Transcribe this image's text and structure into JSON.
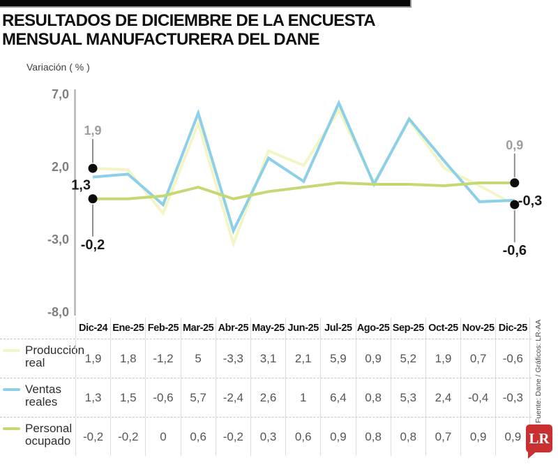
{
  "title": {
    "line1": "RESULTADOS DE DICIEMBRE DE LA ENCUESTA",
    "line2": "MENSUAL MANUFACTURERA DEL DANE"
  },
  "chart_data": {
    "type": "line",
    "ylabel": "Variación ( % )",
    "ylim": [
      -8,
      7
    ],
    "grid": false,
    "legend_position": "table-left",
    "y_ticks": [
      {
        "value": 7,
        "label": "7,0"
      },
      {
        "value": 2,
        "label": "2,0"
      },
      {
        "value": -3,
        "label": "-3,0"
      },
      {
        "value": -8,
        "label": "-8,0"
      }
    ],
    "categories": [
      "Dic-24",
      "Ene-25",
      "Feb-25",
      "Mar-25",
      "Abr-25",
      "May-25",
      "Jun-25",
      "Jul-25",
      "Ago-25",
      "Sep-25",
      "Oct-25",
      "Nov-25",
      "Dic-25"
    ],
    "series": [
      {
        "name": "Producción real",
        "name_lines": [
          "Producción",
          "real"
        ],
        "color": "#f4f5c6",
        "values": [
          1.9,
          1.8,
          -1.2,
          5,
          -3.3,
          3.1,
          2.1,
          5.9,
          0.9,
          5.2,
          1.9,
          0.7,
          -0.6
        ],
        "labels": [
          "1,9",
          "1,8",
          "-1,2",
          "5",
          "-3,3",
          "3,1",
          "2,1",
          "5,9",
          "0,9",
          "5,2",
          "1,9",
          "0,7",
          "-0,6"
        ]
      },
      {
        "name": "Ventas reales",
        "name_lines": [
          "Ventas",
          "reales"
        ],
        "color": "#8ccfe9",
        "values": [
          1.3,
          1.5,
          -0.6,
          5.7,
          -2.4,
          2.6,
          1,
          6.4,
          0.8,
          5.3,
          2.4,
          -0.4,
          -0.3
        ],
        "labels": [
          "1,3",
          "1,5",
          "-0,6",
          "5,7",
          "-2,4",
          "2,6",
          "1",
          "6,4",
          "0,8",
          "5,3",
          "2,4",
          "-0,4",
          "-0,3"
        ]
      },
      {
        "name": "Personal ocupado",
        "name_lines": [
          "Personal",
          "ocupado"
        ],
        "color": "#c5d873",
        "values": [
          -0.2,
          -0.2,
          0,
          0.6,
          -0.2,
          0.3,
          0.6,
          0.9,
          0.8,
          0.8,
          0.7,
          0.9,
          0.9
        ],
        "labels": [
          "-0,2",
          "-0,2",
          "0",
          "0,6",
          "-0,2",
          "0,3",
          "0,6",
          "0,9",
          "0,8",
          "0,8",
          "0,7",
          "0,9",
          "0,9"
        ]
      }
    ],
    "callouts": [
      {
        "text": "1,9",
        "series": 0,
        "index": 0,
        "style": "gray",
        "dot": true,
        "label_pos": "above",
        "offset": 48
      },
      {
        "text": "1,3",
        "series": 1,
        "index": 0,
        "style": "bold",
        "dot": false,
        "label_pos": "left-below"
      },
      {
        "text": "-0,2",
        "series": 2,
        "index": 0,
        "style": "bold",
        "dot": true,
        "label_pos": "below",
        "offset": 62
      },
      {
        "text": "0,9",
        "series": 2,
        "index": 12,
        "style": "gray",
        "dot": true,
        "label_pos": "above",
        "offset": 48
      },
      {
        "text": "-0,3",
        "series": 1,
        "index": 12,
        "style": "bold",
        "dot": false,
        "label_pos": "right"
      },
      {
        "text": "-0,6",
        "series": 0,
        "index": 12,
        "style": "bold",
        "dot": true,
        "label_pos": "below",
        "offset": 62
      }
    ]
  },
  "source": "Fuente: Dane / Gráficos: LR-AA",
  "logo_text": "LR",
  "colors": {
    "logo_red": "#c9302f",
    "axis_gray": "#b5b5b5",
    "dot_black": "#0c0c0c"
  }
}
